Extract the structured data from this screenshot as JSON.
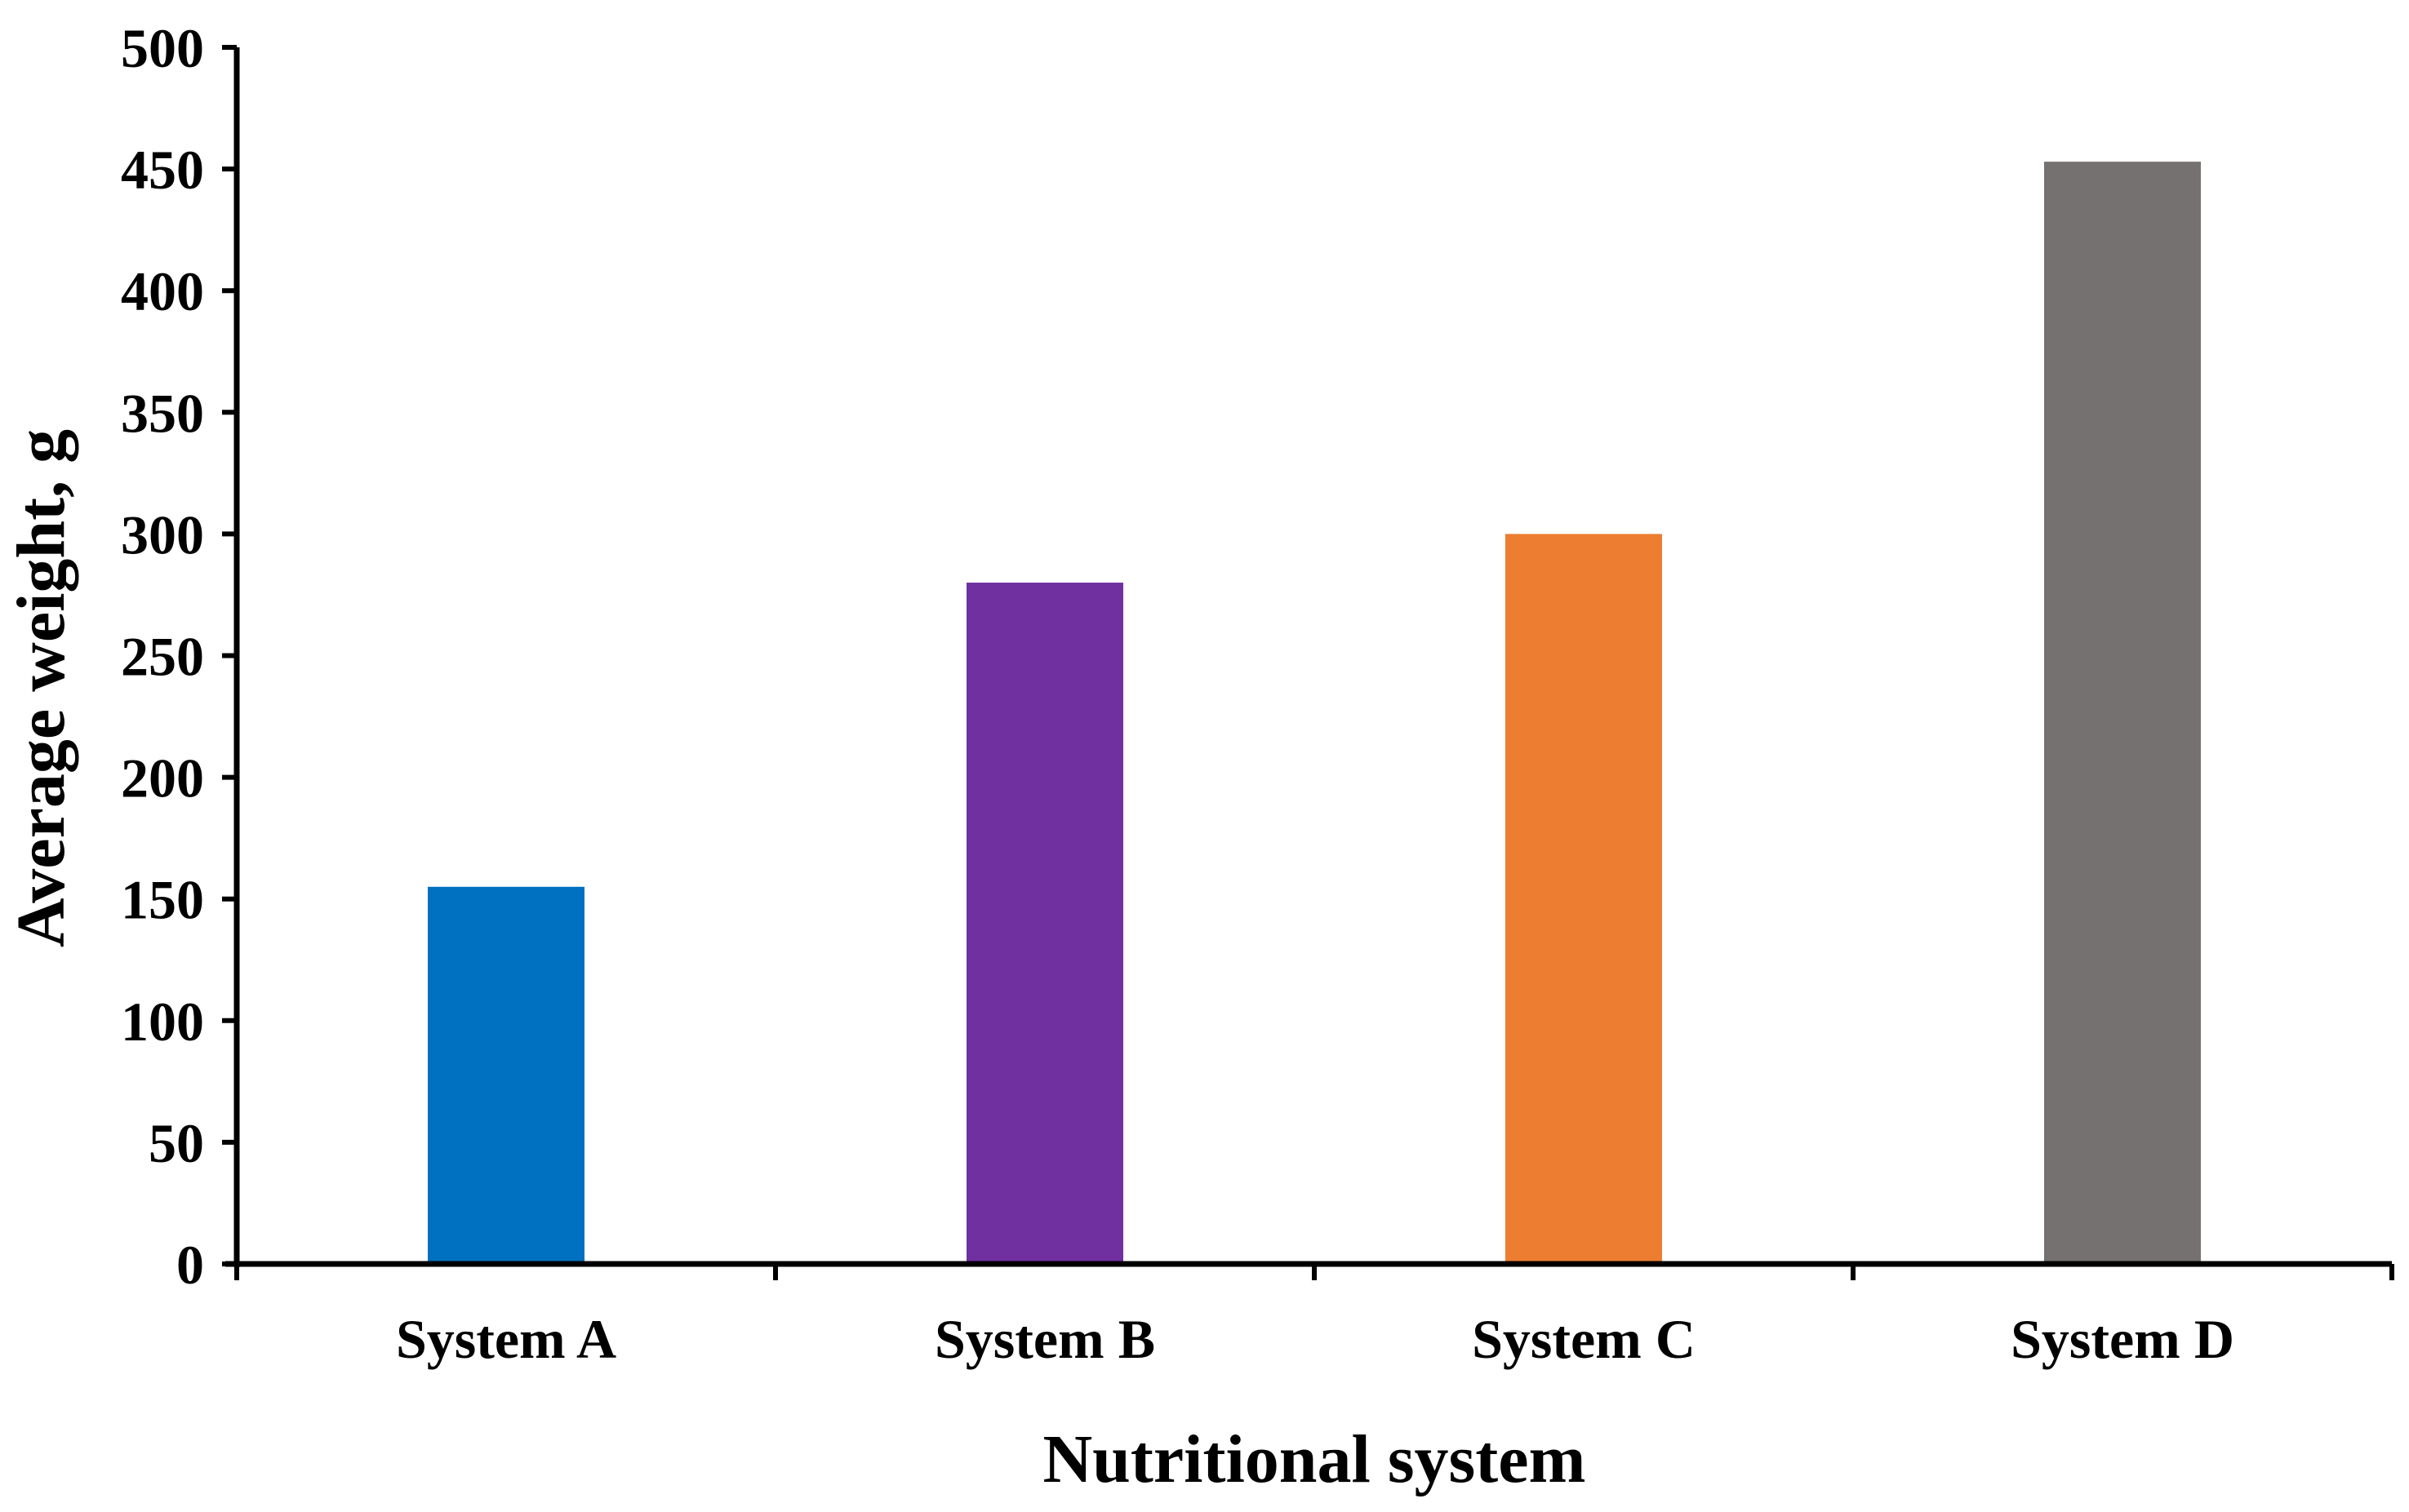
{
  "chart_data": {
    "type": "bar",
    "title": "",
    "xlabel": "Nutritional system",
    "ylabel": "Average weight, g",
    "categories": [
      "System A",
      "System B",
      "System C",
      "System D"
    ],
    "values": [
      155,
      280,
      300,
      453
    ],
    "colors": [
      "#0070C0",
      "#7030A0",
      "#ED7D31",
      "#767171"
    ],
    "ylim": [
      0,
      500
    ],
    "yticks": [
      "0",
      "50",
      "100",
      "150",
      "200",
      "250",
      "300",
      "350",
      "400",
      "450",
      "500"
    ],
    "grid": false,
    "legend": "none"
  }
}
